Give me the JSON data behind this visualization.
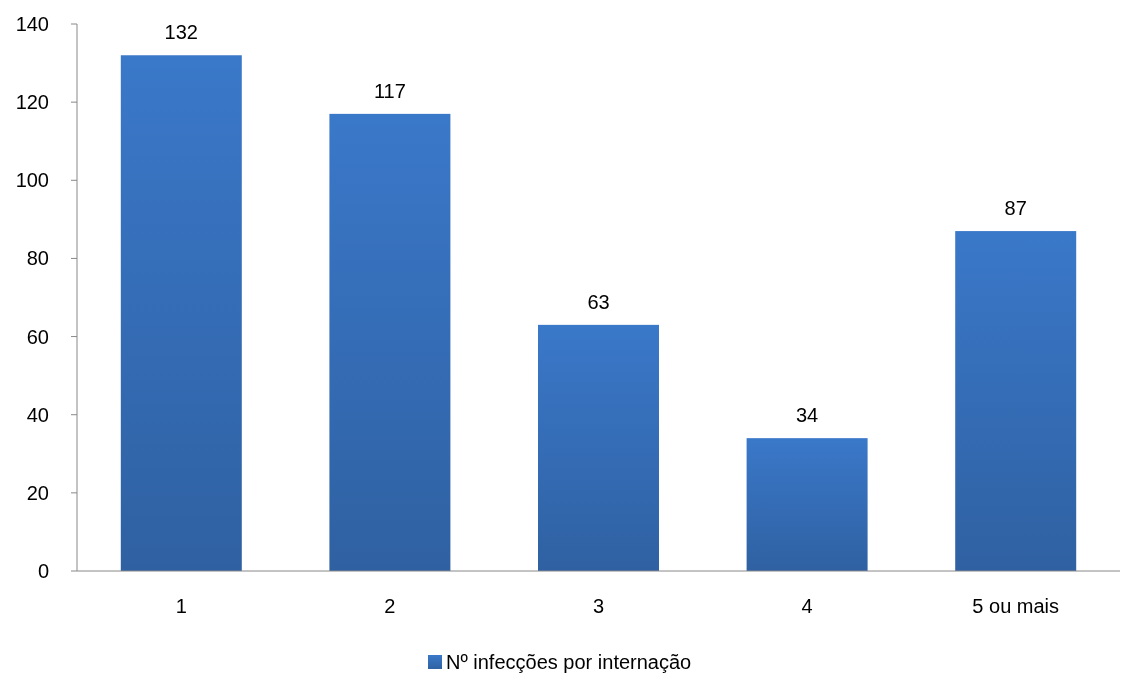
{
  "chart_data": {
    "type": "bar",
    "categories": [
      "1",
      "2",
      "3",
      "4",
      "5 ou mais"
    ],
    "series": [
      {
        "name": "Nº infecções por internação",
        "color": "#3a78c9",
        "values": [
          132,
          117,
          63,
          34,
          87
        ]
      }
    ],
    "ylim": [
      0,
      140
    ],
    "yticks": [
      0,
      20,
      40,
      60,
      80,
      100,
      120,
      140
    ],
    "grid": false,
    "legend": "bottom",
    "data_labels": true
  }
}
